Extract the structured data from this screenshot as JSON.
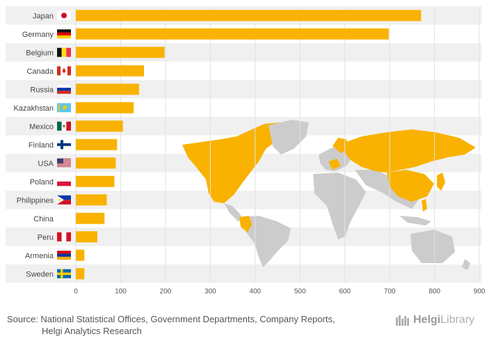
{
  "chart_data": {
    "type": "bar",
    "orientation": "horizontal",
    "categories": [
      "Japan",
      "Germany",
      "Belgium",
      "Canada",
      "Russia",
      "Kazakhstan",
      "Mexico",
      "Finland",
      "USA",
      "Poland",
      "Philippines",
      "China",
      "Peru",
      "Armenia",
      "Sweden"
    ],
    "values": [
      770,
      698,
      198,
      152,
      141,
      129,
      105,
      92,
      89,
      86,
      69,
      64,
      48,
      19,
      19
    ],
    "xlim": [
      0,
      900
    ],
    "xticks": [
      0,
      100,
      200,
      300,
      400,
      500,
      600,
      700,
      800,
      900
    ],
    "tick_labels": [
      "0",
      "100",
      "200",
      "300",
      "400",
      "500",
      "600",
      "700",
      "800",
      "900"
    ],
    "title": "",
    "xlabel": "",
    "ylabel": ""
  },
  "colors": {
    "bar": "#F9B200",
    "band": "#F0F0F0",
    "map_land": "#CCCCCC",
    "map_highlight": "#F9B200"
  },
  "footer": {
    "source_line1": "Source: National Statistical Offices, Government Departments, Company Reports,",
    "source_line2": "Helgi Analytics Research",
    "logo_part1": "Helgi",
    "logo_part2": "Library"
  }
}
